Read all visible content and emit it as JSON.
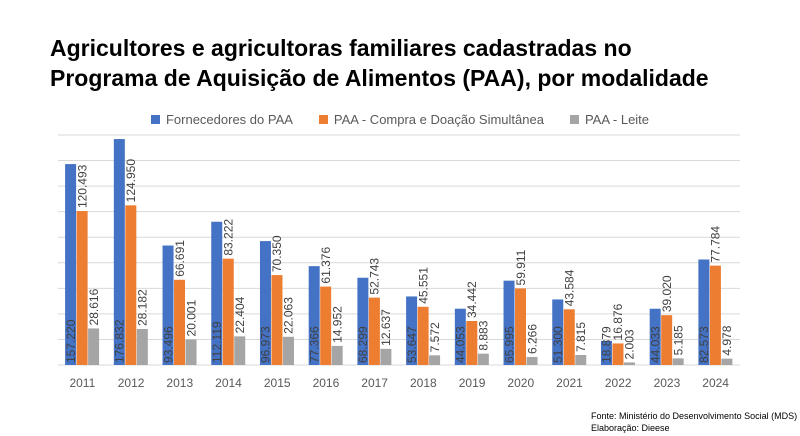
{
  "title_line1": "Agricultores e agricultoras familiares cadastradas no",
  "title_line2": "Programa de Aquisição de Alimentos (PAA), por modalidade",
  "source_line1": "Fonte: Ministério do Desenvolvimento Social (MDS)",
  "source_line2": "Elaboração: Dieese",
  "colors": {
    "series1": "#4472c4",
    "series2": "#ed7d31",
    "series3": "#a5a5a5",
    "grid": "#d9d9d9",
    "axis_text": "#595959",
    "label_text": "#404040"
  },
  "chart_data": {
    "type": "bar",
    "categories": [
      "2011",
      "2012",
      "2013",
      "2014",
      "2015",
      "2016",
      "2017",
      "2018",
      "2019",
      "2020",
      "2021",
      "2022",
      "2023",
      "2024"
    ],
    "series": [
      {
        "name": "Fornecedores do PAA",
        "values": [
          157220,
          176832,
          93496,
          112119,
          96973,
          77366,
          68299,
          53647,
          44053,
          65995,
          51300,
          18879,
          44033,
          82573
        ],
        "labels": [
          "157.220",
          "176.832",
          "93.496",
          "112.119",
          "96.973",
          "77.366",
          "68.299",
          "53.647",
          "44.053",
          "65.995",
          "51.300",
          "18.879",
          "44.033",
          "82.573"
        ]
      },
      {
        "name": "PAA - Compra e Doação Simultânea",
        "values": [
          120493,
          124950,
          66691,
          83222,
          70350,
          61376,
          52743,
          45551,
          34442,
          59911,
          43584,
          16876,
          39020,
          77784
        ],
        "labels": [
          "120.493",
          "124.950",
          "66.691",
          "83.222",
          "70.350",
          "61.376",
          "52.743",
          "45.551",
          "34.442",
          "59.911",
          "43.584",
          "16.876",
          "39.020",
          "77.784"
        ]
      },
      {
        "name": "PAA - Leite",
        "values": [
          28616,
          28182,
          20001,
          22404,
          22063,
          14952,
          12637,
          7572,
          8883,
          6266,
          7815,
          2003,
          5185,
          4978
        ],
        "labels": [
          "28.616",
          "28.182",
          "20.001",
          "22.404",
          "22.063",
          "14.952",
          "12.637",
          "7.572",
          "8.883",
          "6.266",
          "7.815",
          "2.003",
          "5.185",
          "4.978"
        ]
      }
    ],
    "ylim": [
      0,
      180000
    ],
    "grid": true,
    "legend": "top"
  }
}
